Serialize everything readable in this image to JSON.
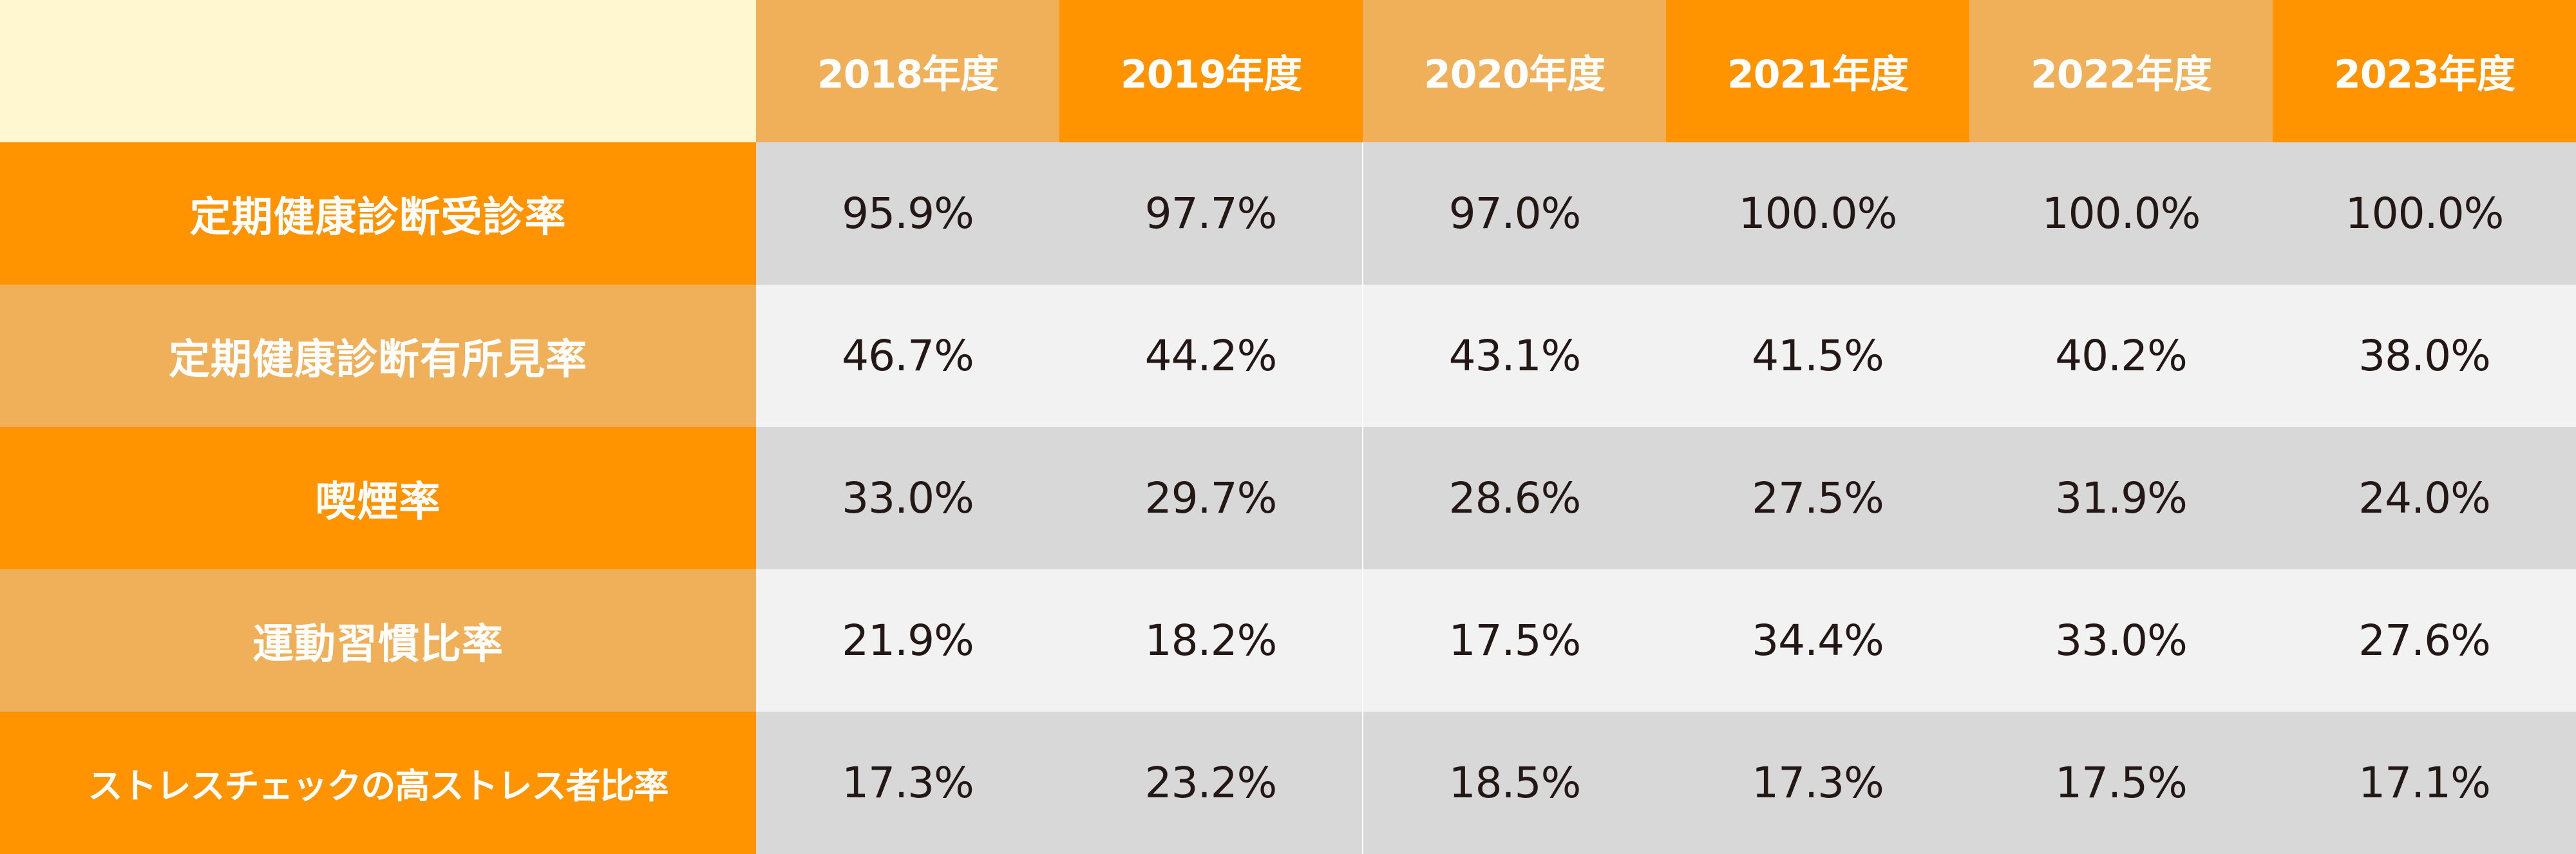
{
  "table": {
    "corner": "",
    "years": [
      "2018年度",
      "2019年度",
      "2020年度",
      "2021年度",
      "2022年度",
      "2023年度"
    ],
    "rows": [
      {
        "label": "定期健康診断受診率",
        "values": [
          "95.9%",
          "97.7%",
          "97.0%",
          "100.0%",
          "100.0%",
          "100.0%"
        ]
      },
      {
        "label": "定期健康診断有所見率",
        "values": [
          "46.7%",
          "44.2%",
          "43.1%",
          "41.5%",
          "40.2%",
          "38.0%"
        ]
      },
      {
        "label": "喫煙率",
        "values": [
          "33.0%",
          "29.7%",
          "28.6%",
          "27.5%",
          "31.9%",
          "24.0%"
        ]
      },
      {
        "label": "運動習慣比率",
        "values": [
          "21.9%",
          "18.2%",
          "17.5%",
          "34.4%",
          "33.0%",
          "27.6%"
        ]
      },
      {
        "label": "ストレスチェックの高ストレス者比率",
        "values": [
          "17.3%",
          "23.2%",
          "18.5%",
          "17.3%",
          "17.5%",
          "17.1%"
        ]
      }
    ]
  },
  "colors": {
    "orange": "#ff9400",
    "light_orange": "#f0b05a",
    "cream": "#fff7d0",
    "gray": "#d8d8d8",
    "light_gray": "#f2f2f2",
    "text_dark": "#231815"
  }
}
